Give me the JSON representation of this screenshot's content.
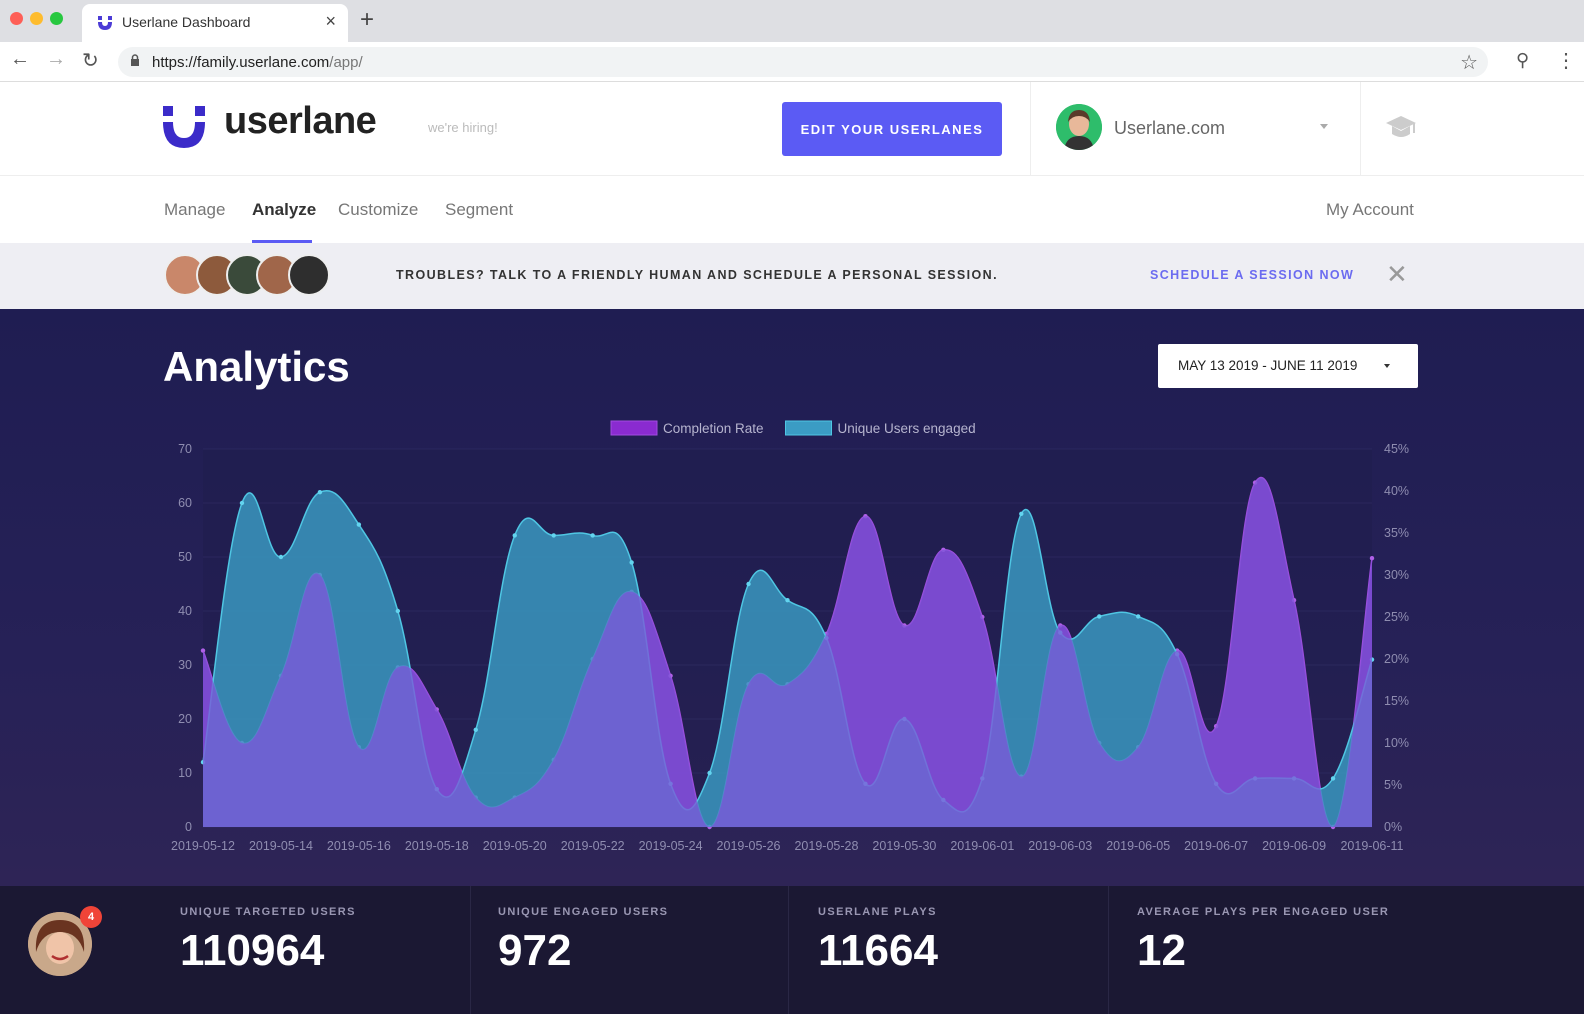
{
  "browser": {
    "tab_title": "Userlane Dashboard",
    "url_host": "https://family.userlane.com",
    "url_path": "/app/"
  },
  "header": {
    "logo_text": "userlane",
    "hiring_text": "we're hiring!",
    "edit_button": "EDIT YOUR USERLANES",
    "account_name": "Userlane.com"
  },
  "nav": {
    "items": [
      "Manage",
      "Analyze",
      "Customize",
      "Segment"
    ],
    "active": "Analyze",
    "my_account": "My Account"
  },
  "banner": {
    "text": "TROUBLES? TALK TO A FRIENDLY HUMAN AND SCHEDULE A PERSONAL SESSION.",
    "link": "SCHEDULE A SESSION NOW"
  },
  "analytics": {
    "title": "Analytics",
    "date_range": "MAY 13 2019 - JUNE 11 2019"
  },
  "chart_data": {
    "type": "area",
    "x": [
      "2019-05-12",
      "2019-05-13",
      "2019-05-14",
      "2019-05-15",
      "2019-05-16",
      "2019-05-17",
      "2019-05-18",
      "2019-05-19",
      "2019-05-20",
      "2019-05-21",
      "2019-05-22",
      "2019-05-23",
      "2019-05-24",
      "2019-05-25",
      "2019-05-26",
      "2019-05-27",
      "2019-05-28",
      "2019-05-29",
      "2019-05-30",
      "2019-05-31",
      "2019-06-01",
      "2019-06-02",
      "2019-06-03",
      "2019-06-04",
      "2019-06-05",
      "2019-06-06",
      "2019-06-07",
      "2019-06-08",
      "2019-06-09",
      "2019-06-10",
      "2019-06-11"
    ],
    "x_tick_labels": [
      "2019-05-12",
      "2019-05-14",
      "2019-05-16",
      "2019-05-18",
      "2019-05-20",
      "2019-05-22",
      "2019-05-24",
      "2019-05-26",
      "2019-05-28",
      "2019-05-30",
      "2019-06-01",
      "2019-06-03",
      "2019-06-05",
      "2019-06-07",
      "2019-06-09",
      "2019-06-11"
    ],
    "y_left": {
      "ylim": [
        0,
        70
      ],
      "ticks": [
        "0",
        "10",
        "20",
        "30",
        "40",
        "50",
        "60",
        "70"
      ]
    },
    "y_right": {
      "ylim": [
        0,
        45
      ],
      "ticks": [
        "0%",
        "5%",
        "10%",
        "15%",
        "20%",
        "25%",
        "30%",
        "35%",
        "40%",
        "45%"
      ]
    },
    "legend_position": "top-center",
    "series": [
      {
        "name": "Completion Rate",
        "axis": "right",
        "color": "#8b2fc9",
        "values": [
          21,
          10,
          18,
          30,
          9.5,
          19,
          14,
          3.5,
          3.5,
          8,
          20,
          28,
          18,
          0,
          17,
          17,
          23,
          37,
          24,
          33,
          25,
          6,
          24,
          10,
          9.5,
          21,
          12,
          41,
          27,
          0,
          32
        ]
      },
      {
        "name": "Unique Users engaged",
        "axis": "left",
        "color": "#3a9fc4",
        "values": [
          12,
          60,
          50,
          62,
          56,
          40,
          7,
          18,
          54,
          54,
          54,
          49,
          8,
          10,
          45,
          42,
          35,
          8,
          20,
          5,
          9,
          58,
          36,
          39,
          39,
          32,
          8,
          9,
          9,
          9,
          31
        ]
      }
    ]
  },
  "stats": {
    "badge_count": "4",
    "items": [
      {
        "label": "UNIQUE TARGETED USERS",
        "value": "110964"
      },
      {
        "label": "UNIQUE ENGAGED USERS",
        "value": "972"
      },
      {
        "label": "USERLANE PLAYS",
        "value": "11664"
      },
      {
        "label": "AVERAGE PLAYS PER ENGAGED USER",
        "value": "12"
      }
    ]
  },
  "colors": {
    "accent": "#5b5bf4",
    "analytics_bg": "#1f1d52",
    "completion": "#8b2fc9",
    "engaged": "#3a9fc4"
  }
}
